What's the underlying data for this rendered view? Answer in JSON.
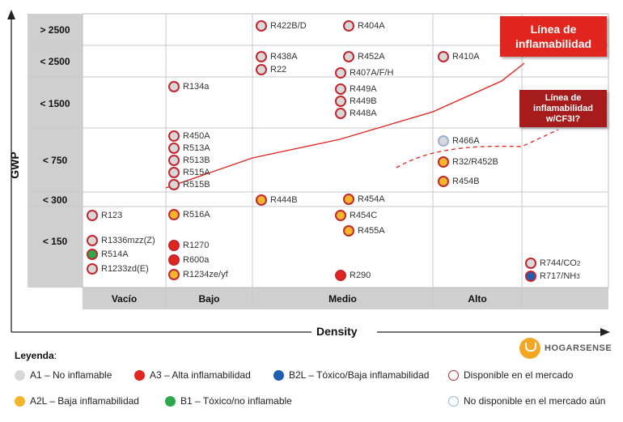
{
  "axes": {
    "y_title": "GWP",
    "x_title": "Density"
  },
  "gwp_rows": [
    "> 2500",
    "< 2500",
    "< 1500",
    "< 750",
    "< 300",
    "< 150"
  ],
  "density_cols": [
    "Vacío",
    "Bajo",
    "Medio",
    "Alto"
  ],
  "flammability_line_label": "Línea de inflamabilidad",
  "flammability_cf3i_label": "Línea de inflamabilidad w/CF3I?",
  "refrigerants": [
    {
      "label": "R422B/D",
      "class": "A1",
      "market": "available"
    },
    {
      "label": "R404A",
      "class": "A1",
      "market": "available"
    },
    {
      "label": "R438A",
      "class": "A1",
      "market": "available"
    },
    {
      "label": "R22",
      "class": "A1",
      "market": "available"
    },
    {
      "label": "R452A",
      "class": "A1",
      "market": "available"
    },
    {
      "label": "R407A/F/H",
      "class": "A1",
      "market": "available"
    },
    {
      "label": "R410A",
      "class": "A1",
      "market": "available"
    },
    {
      "label": "R134a",
      "class": "A1",
      "market": "available"
    },
    {
      "label": "R449A",
      "class": "A1",
      "market": "available"
    },
    {
      "label": "R449B",
      "class": "A1",
      "market": "available"
    },
    {
      "label": "R448A",
      "class": "A1",
      "market": "available"
    },
    {
      "label": "R450A",
      "class": "A1",
      "market": "available"
    },
    {
      "label": "R513A",
      "class": "A1",
      "market": "available"
    },
    {
      "label": "R513B",
      "class": "A1",
      "market": "available"
    },
    {
      "label": "R515A",
      "class": "A1",
      "market": "available"
    },
    {
      "label": "R515B",
      "class": "A1",
      "market": "available"
    },
    {
      "label": "R466A",
      "class": "A1",
      "market": "not_available"
    },
    {
      "label": "R32/R452B",
      "class": "A2L",
      "market": "available"
    },
    {
      "label": "R454B",
      "class": "A2L",
      "market": "available"
    },
    {
      "label": "R444B",
      "class": "A2L",
      "market": "available"
    },
    {
      "label": "R454A",
      "class": "A2L",
      "market": "available"
    },
    {
      "label": "R123",
      "class": "A1",
      "market": "available"
    },
    {
      "label": "R516A",
      "class": "A2L",
      "market": "available"
    },
    {
      "label": "R454C",
      "class": "A2L",
      "market": "available"
    },
    {
      "label": "R455A",
      "class": "A2L",
      "market": "available"
    },
    {
      "label": "R1336mzz(Z)",
      "class": "A1",
      "market": "available"
    },
    {
      "label": "R514A",
      "class": "B1",
      "market": "available"
    },
    {
      "label": "R1233zd(E)",
      "class": "A1",
      "market": "available"
    },
    {
      "label": "R1270",
      "class": "A3",
      "market": "available"
    },
    {
      "label": "R600a",
      "class": "A3",
      "market": "available"
    },
    {
      "label": "R1234ze/yf",
      "class": "A2L",
      "market": "available"
    },
    {
      "label": "R290",
      "class": "A3",
      "market": "available"
    },
    {
      "label": "R744/CO",
      "sub": "2",
      "class": "A1",
      "market": "available"
    },
    {
      "label": "R717/NH",
      "sub": "3",
      "class": "B2L",
      "market": "available"
    }
  ],
  "class_colors": {
    "A1": "#d8d8d8",
    "A2L": "#f5b52a",
    "A3": "#e0261f",
    "B1": "#2ea84a",
    "B2L": "#1f5fb0"
  },
  "legend": {
    "title": "Leyenda",
    "title_colon": ":",
    "items": [
      {
        "label": "A1 – No inflamable",
        "fill": "#d8d8d8",
        "ring": "#d8d8d8"
      },
      {
        "label": "A3 – Alta inflamabilidad",
        "fill": "#e0261f",
        "ring": "#e0261f"
      },
      {
        "label": "B2L – Tóxico/Baja inflamabilidad",
        "fill": "#1f5fb0",
        "ring": "#1f5fb0"
      },
      {
        "label": "Disponible en el mercado",
        "fill": "#ffffff",
        "ring": "#c4262e"
      },
      {
        "label": "A2L – Baja inflamabilidad",
        "fill": "#f5b52a",
        "ring": "#f5b52a"
      },
      {
        "label": "B1 – Tóxico/no inflamable",
        "fill": "#2ea84a",
        "ring": "#2ea84a"
      },
      {
        "label": "No disponible en el mercado aún",
        "fill": "#ffffff",
        "ring": "#9bb2d6"
      }
    ]
  },
  "brand": {
    "logo_text": "HOGARSENSE",
    "logo_color": "#f5a623"
  }
}
